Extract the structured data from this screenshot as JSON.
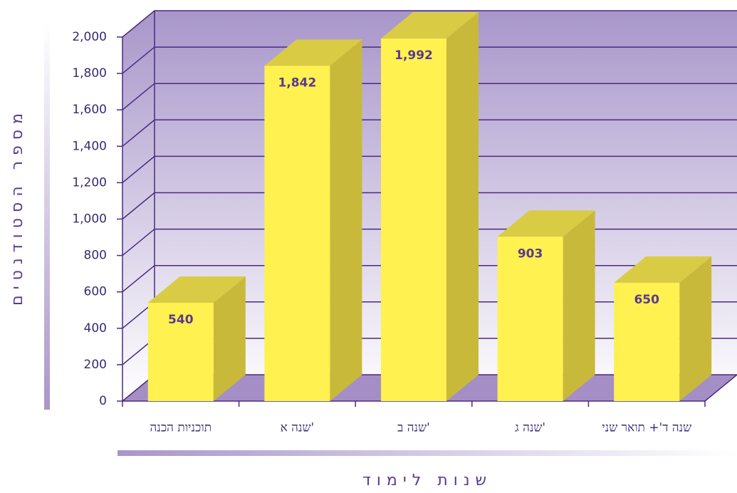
{
  "chart_data": {
    "type": "bar3d",
    "y_label": "מספר הסטודנטים",
    "x_label": "שנות לימוד",
    "categories": [
      "תוכניות הכנה",
      "שנה א'",
      "שנה ב'",
      "שנה ג'",
      "שנה ד'+ תואר שני"
    ],
    "values": [
      540,
      1842,
      1992,
      903,
      650
    ],
    "value_labels": [
      "540",
      "1,842",
      "1,992",
      "903",
      "650"
    ],
    "color": "#fff14f",
    "ylim": [
      0,
      2000
    ],
    "yticks": [
      0,
      200,
      400,
      600,
      800,
      {
        "value": 1000,
        "label": "1,000"
      },
      {
        "value": 1200,
        "label": "1,200"
      },
      {
        "value": 1400,
        "label": "1,400"
      },
      {
        "value": 1600,
        "label": "1,600"
      },
      {
        "value": 1800,
        "label": "1,800"
      },
      {
        "value": 2000,
        "label": "2,000"
      }
    ],
    "grid": true
  }
}
